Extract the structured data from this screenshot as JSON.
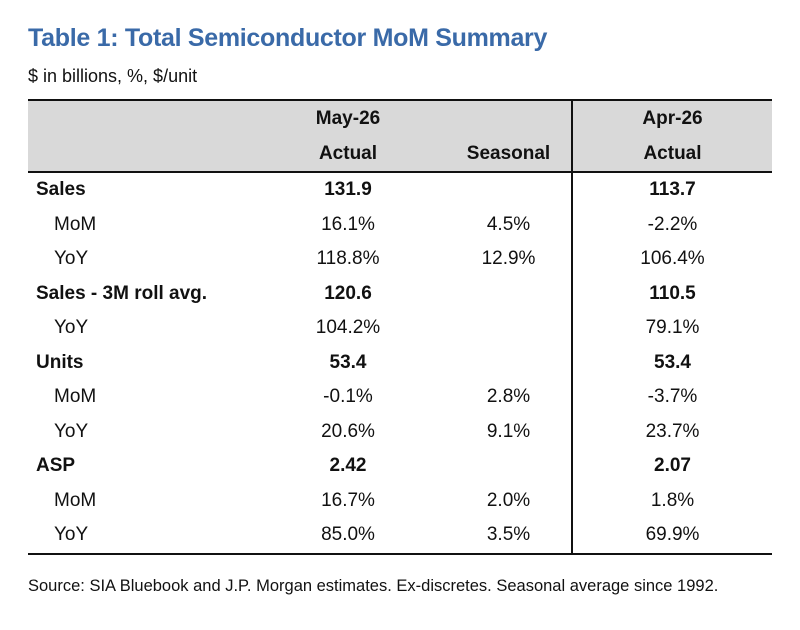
{
  "title": "Table 1: Total Semiconductor MoM Summary",
  "subtitle": "$ in billions, %, $/unit",
  "header": {
    "may_period": "May-26",
    "may_actual": "Actual",
    "seasonal": "Seasonal",
    "apr_period": "Apr-26",
    "apr_actual": "Actual"
  },
  "rows": [
    {
      "label": "Sales",
      "may": "131.9",
      "seasonal": "",
      "apr": "113.7"
    },
    {
      "label": "MoM",
      "may": "16.1%",
      "seasonal": "4.5%",
      "apr": "-2.2%"
    },
    {
      "label": "YoY",
      "may": "118.8%",
      "seasonal": "12.9%",
      "apr": "106.4%"
    },
    {
      "label": "Sales - 3M roll avg.",
      "may": "120.6",
      "seasonal": "",
      "apr": "110.5"
    },
    {
      "label": "YoY",
      "may": "104.2%",
      "seasonal": "",
      "apr": "79.1%"
    },
    {
      "label": "Units",
      "may": "53.4",
      "seasonal": "",
      "apr": "53.4"
    },
    {
      "label": "MoM",
      "may": "-0.1%",
      "seasonal": "2.8%",
      "apr": "-3.7%"
    },
    {
      "label": "YoY",
      "may": "20.6%",
      "seasonal": "9.1%",
      "apr": "23.7%"
    },
    {
      "label": "ASP",
      "may": "2.42",
      "seasonal": "",
      "apr": "2.07"
    },
    {
      "label": "MoM",
      "may": "16.7%",
      "seasonal": "2.0%",
      "apr": "1.8%"
    },
    {
      "label": "YoY",
      "may": "85.0%",
      "seasonal": "3.5%",
      "apr": "69.9%"
    }
  ],
  "source": "Source: SIA Bluebook and J.P. Morgan estimates. Ex-discretes. Seasonal average since 1992."
}
